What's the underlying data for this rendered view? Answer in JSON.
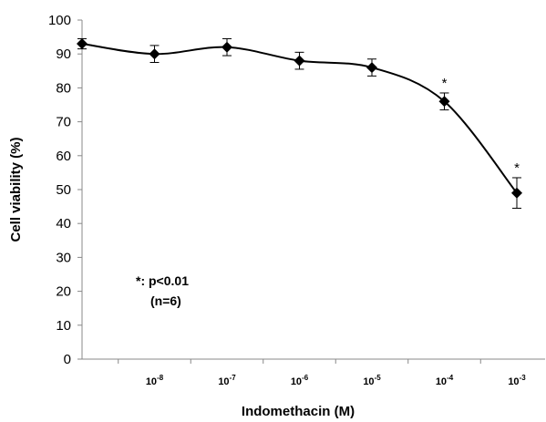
{
  "chart_data": {
    "type": "line",
    "xlabel": "Indomethacin  (M)",
    "ylabel": "Cell viability  (%)",
    "ylim": [
      0,
      100
    ],
    "y_ticks": [
      "0",
      "10",
      "20",
      "30",
      "40",
      "50",
      "60",
      "70",
      "80",
      "90",
      "100"
    ],
    "categories": [
      {
        "base": "",
        "exp": ""
      },
      {
        "base": "10",
        "exp": "-8"
      },
      {
        "base": "10",
        "exp": "-7"
      },
      {
        "base": "10",
        "exp": "-6"
      },
      {
        "base": "10",
        "exp": "-5"
      },
      {
        "base": "10",
        "exp": "-4"
      },
      {
        "base": "10",
        "exp": "-3"
      }
    ],
    "series": [
      {
        "values": [
          93,
          90,
          92,
          88,
          86,
          76,
          49
        ],
        "errors": [
          1.5,
          2.5,
          2.5,
          2.5,
          2.5,
          2.5,
          4.5
        ],
        "significance": [
          "",
          "",
          "",
          "",
          "",
          "*",
          "*"
        ],
        "marker": "diamond",
        "color": "#000000"
      }
    ],
    "annotations": {
      "line1": "*: p<0.01",
      "line2": "(n=6)"
    },
    "grid": false
  }
}
